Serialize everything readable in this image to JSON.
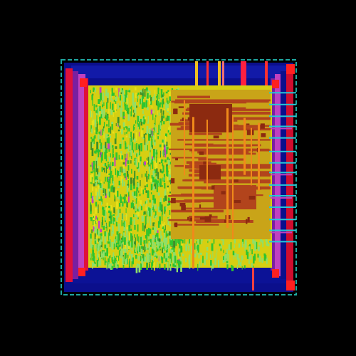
{
  "view": {
    "type": "ic-layout-render",
    "background": "#000000"
  },
  "colors": {
    "boundary": "#1fa7a0",
    "power_ring": "#0b0f8c",
    "power_ring_inner": "#0a0c70",
    "io_pad_left": "#e0103a",
    "io_pad_right": "#cf0d2e",
    "pad_magenta": "#c040c0",
    "pad_purple": "#7a1fa0",
    "core_fill": "#d6cf12",
    "core_highlight": "#e6e11a",
    "green_cells": "#2fc42f",
    "light_green": "#8ee06a",
    "dense_macro": "#b2441c",
    "dense_macro_dark": "#8c2a10",
    "orange_routing": "#f08a1a",
    "corner_red": "#ff2020",
    "cyan_edge": "#22c8d8",
    "top_pins": [
      "#f0c020",
      "#ff3030",
      "#f07070"
    ]
  },
  "regions": {
    "die_boundary": "die-boundary",
    "core_area": "standard-cell-core",
    "macro_block": "dense-macro-block",
    "left_io_ring": "left-io-ring",
    "right_io_ring": "right-io-ring",
    "top_power_ring": "top-power-ring",
    "bottom_power_ring": "bottom-power-ring"
  }
}
